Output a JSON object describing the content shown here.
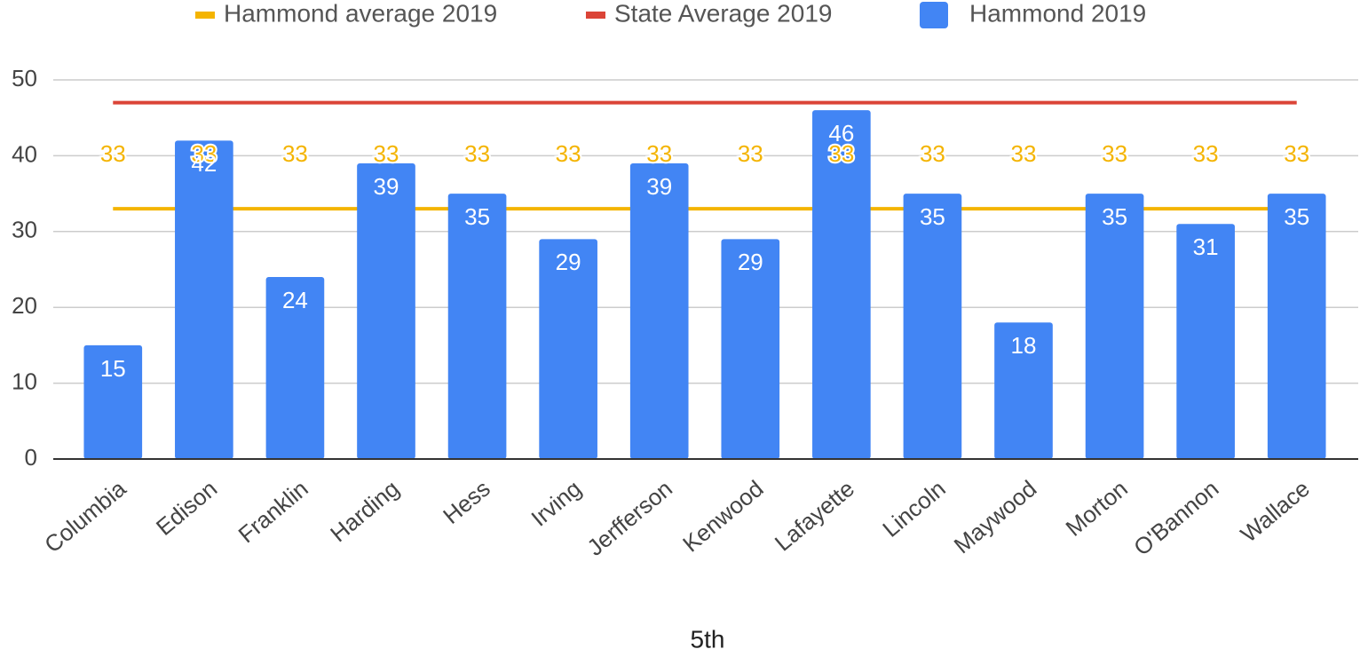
{
  "chart_data": {
    "type": "bar",
    "xlabel": "5th",
    "categories": [
      "Columbia",
      "Edison",
      "Franklin",
      "Harding",
      "Hess",
      "Irving",
      "Jerfferson",
      "Kenwood",
      "Lafayette",
      "Lincoln",
      "Maywood",
      "Morton",
      "O'Bannon",
      "Wallace"
    ],
    "series": [
      {
        "name": "Hammond average 2019",
        "type": "line",
        "color": "#f4b400",
        "values": [
          33,
          33,
          33,
          33,
          33,
          33,
          33,
          33,
          33,
          33,
          33,
          33,
          33,
          33
        ],
        "data_labels": true
      },
      {
        "name": "State Average 2019",
        "type": "line",
        "color": "#db4437",
        "values": [
          47,
          47,
          47,
          47,
          47,
          47,
          47,
          47,
          47,
          47,
          47,
          47,
          47,
          47
        ],
        "data_labels": false
      },
      {
        "name": "Hammond 2019",
        "type": "bar",
        "color": "#4285f4",
        "values": [
          15,
          42,
          24,
          39,
          35,
          29,
          39,
          29,
          46,
          35,
          18,
          35,
          31,
          35
        ],
        "data_labels": true
      }
    ],
    "ylim": [
      0,
      50
    ],
    "yticks": [
      0,
      10,
      20,
      30,
      40,
      50
    ],
    "grid": true,
    "legend": "top"
  }
}
